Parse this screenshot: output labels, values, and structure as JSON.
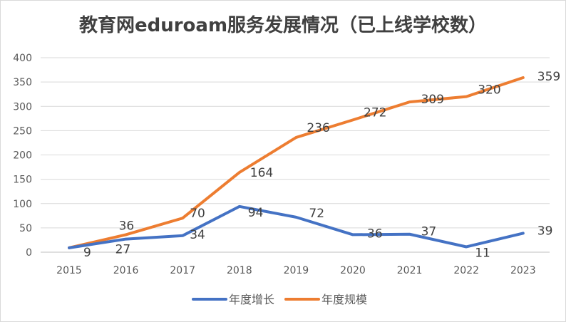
{
  "chart_data": {
    "type": "line",
    "title": "教育网eduroam服务发展情况（已上线学校数）",
    "categories": [
      "2015",
      "2016",
      "2017",
      "2018",
      "2019",
      "2020",
      "2021",
      "2022",
      "2023"
    ],
    "series": [
      {
        "name": "年度增长",
        "color": "#4472c4",
        "values": [
          9,
          27,
          34,
          94,
          72,
          36,
          37,
          11,
          39
        ]
      },
      {
        "name": "年度规模",
        "color": "#ed7d31",
        "values": [
          9,
          36,
          70,
          164,
          236,
          272,
          309,
          320,
          359
        ]
      }
    ],
    "ylim": [
      0,
      400
    ],
    "yticks": [
      0,
      50,
      100,
      150,
      200,
      250,
      300,
      350,
      400
    ],
    "grid": true,
    "legend": "bottom"
  }
}
